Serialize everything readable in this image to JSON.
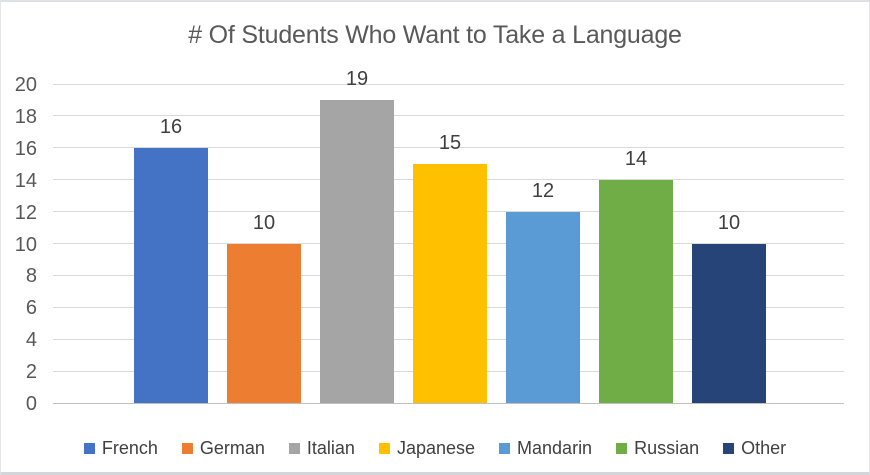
{
  "title": "# Of Students Who Want to Take a Language",
  "chart_data": {
    "type": "bar",
    "title": "# Of Students Who Want to Take a Language",
    "categories": [
      "French",
      "German",
      "Italian",
      "Japanese",
      "Mandarin",
      "Russian",
      "Other"
    ],
    "values": [
      16,
      10,
      19,
      15,
      12,
      14,
      10
    ],
    "colors": [
      "#4472C4",
      "#ED7D31",
      "#A5A5A5",
      "#FFC000",
      "#5B9BD5",
      "#70AD47",
      "#264478"
    ],
    "xlabel": "",
    "ylabel": "",
    "ylim": [
      0,
      20
    ],
    "ytick_step": 2,
    "yticks": [
      0,
      2,
      4,
      6,
      8,
      10,
      12,
      14,
      16,
      18,
      20
    ],
    "grid": true,
    "value_labels_shown": true,
    "legend_position": "bottom",
    "legend": [
      "French",
      "German",
      "Italian",
      "Japanese",
      "Mandarin",
      "Russian",
      "Other"
    ]
  },
  "ui_colors": {
    "background": "#FFFFFF",
    "title_text": "#595959",
    "tick_text": "#595959",
    "value_label_text": "#404040",
    "legend_text": "#404040",
    "gridline": "#D9D9D9",
    "axis_line": "#BFBFBF"
  }
}
